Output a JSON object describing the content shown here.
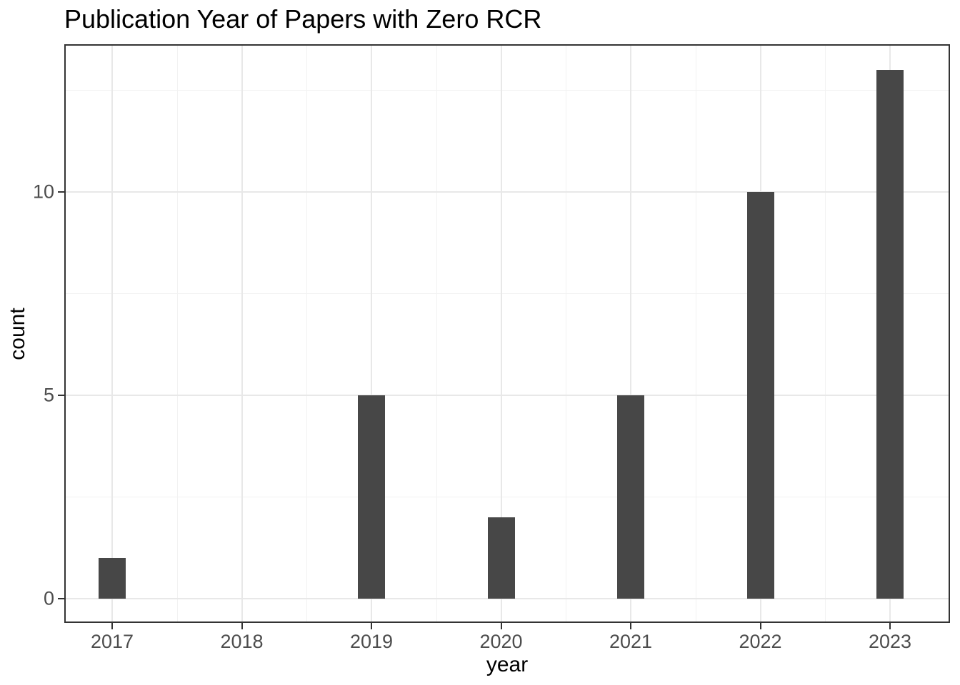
{
  "chart_data": {
    "type": "bar",
    "title": "Publication Year of Papers with Zero RCR",
    "xlabel": "year",
    "ylabel": "count",
    "categories": [
      "2017",
      "2018",
      "2019",
      "2020",
      "2021",
      "2022",
      "2023"
    ],
    "values": [
      1,
      0,
      5,
      2,
      5,
      10,
      13
    ],
    "yticks": [
      0,
      5,
      10
    ],
    "y_minor_gridlines": [
      2.5,
      7.5,
      12.5
    ],
    "ylim": [
      -0.6,
      13.6
    ],
    "grid": "major and minor, light grey on white",
    "legend": false,
    "colors": {
      "bar_fill": "#474747",
      "grid_major": "#e8e8e8",
      "grid_minor": "#f2f2f2",
      "panel_border": "#333333",
      "tick_mark": "#333333",
      "axis_text": "#4d4d4d",
      "title_text": "#000000",
      "background": "#ffffff"
    }
  }
}
